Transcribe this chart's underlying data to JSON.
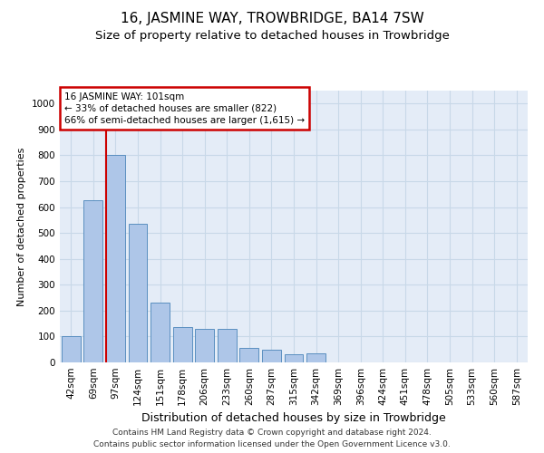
{
  "title": "16, JASMINE WAY, TROWBRIDGE, BA14 7SW",
  "subtitle": "Size of property relative to detached houses in Trowbridge",
  "xlabel": "Distribution of detached houses by size in Trowbridge",
  "ylabel": "Number of detached properties",
  "footer_line1": "Contains HM Land Registry data © Crown copyright and database right 2024.",
  "footer_line2": "Contains public sector information licensed under the Open Government Licence v3.0.",
  "bar_labels": [
    "42sqm",
    "69sqm",
    "97sqm",
    "124sqm",
    "151sqm",
    "178sqm",
    "206sqm",
    "233sqm",
    "260sqm",
    "287sqm",
    "315sqm",
    "342sqm",
    "369sqm",
    "396sqm",
    "424sqm",
    "451sqm",
    "478sqm",
    "505sqm",
    "533sqm",
    "560sqm",
    "587sqm"
  ],
  "bar_values": [
    100,
    625,
    800,
    535,
    230,
    135,
    130,
    130,
    55,
    50,
    30,
    35,
    0,
    0,
    0,
    0,
    0,
    0,
    0,
    0,
    0
  ],
  "bar_color": "#aec6e8",
  "bar_edge_color": "#5a8fc0",
  "highlight_bar_index": 2,
  "highlight_color": "#cc0000",
  "annotation_text": "16 JASMINE WAY: 101sqm\n← 33% of detached houses are smaller (822)\n66% of semi-detached houses are larger (1,615) →",
  "annotation_box_color": "#cc0000",
  "ylim": [
    0,
    1050
  ],
  "yticks": [
    0,
    100,
    200,
    300,
    400,
    500,
    600,
    700,
    800,
    900,
    1000
  ],
  "grid_color": "#c8d8e8",
  "bg_color": "#e4ecf7",
  "title_fontsize": 11,
  "subtitle_fontsize": 9.5,
  "ylabel_fontsize": 8,
  "xlabel_fontsize": 9,
  "tick_fontsize": 7.5,
  "annotation_fontsize": 7.5,
  "footer_fontsize": 6.5
}
